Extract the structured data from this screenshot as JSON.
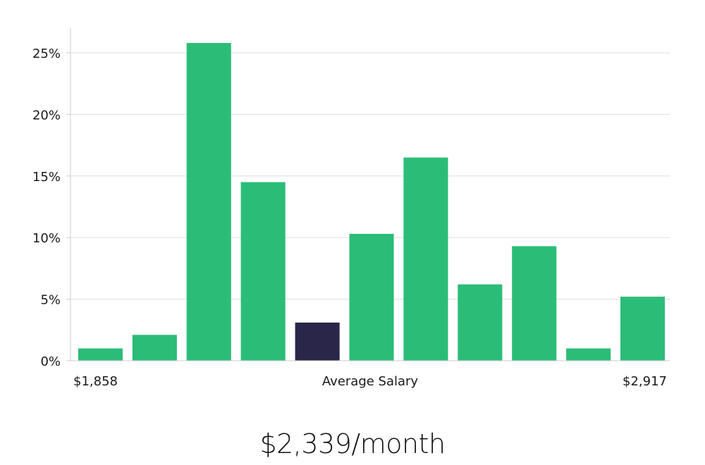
{
  "chart_data": {
    "type": "bar",
    "categories": [
      "1",
      "2",
      "3",
      "4",
      "5",
      "6",
      "7",
      "8",
      "9",
      "10",
      "11"
    ],
    "values": [
      1.0,
      2.1,
      25.8,
      14.5,
      3.1,
      10.3,
      16.5,
      6.2,
      9.3,
      1.0,
      5.2
    ],
    "highlight_index": 4,
    "ylim": [
      0,
      27
    ],
    "yticks": [
      0,
      5,
      10,
      15,
      20,
      25
    ],
    "ytick_format": "%",
    "grid": true,
    "x_min_label": "$1,858",
    "x_center_label": "Average Salary",
    "x_max_label": "$2,917"
  },
  "colors": {
    "bar": "#2bbd77",
    "highlight": "#29264a",
    "grid": "#dddddd",
    "axis": "#cccccc"
  },
  "headline": "$2,339/month"
}
